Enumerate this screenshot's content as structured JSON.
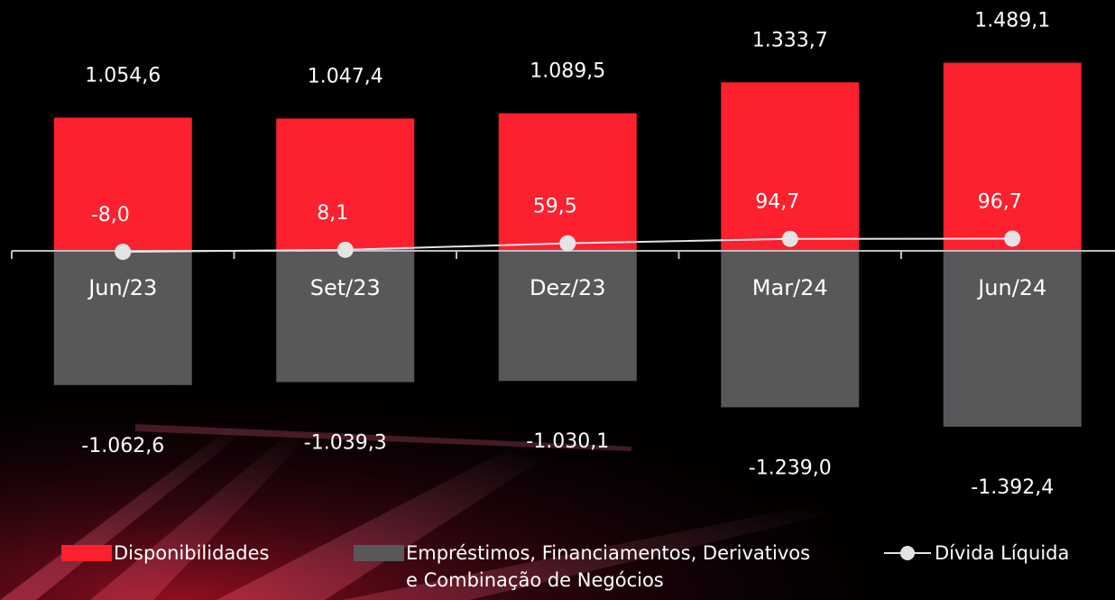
{
  "chart_data": {
    "type": "bar",
    "categories": [
      "Jun/23",
      "Set/23",
      "Dez/23",
      "Mar/24",
      "Jun/24"
    ],
    "series": [
      {
        "name": "Disponibilidades",
        "color": "#fd202e",
        "values": [
          1054.6,
          1047.4,
          1089.5,
          1333.7,
          1489.1
        ],
        "value_labels": [
          "1.054,6",
          "1.047,4",
          "1.089,5",
          "1.333,7",
          "1.489,1"
        ]
      },
      {
        "name": "Empréstimos, Financiamentos, Derivativos e Combinação de Negócios",
        "color": "#58585b",
        "values": [
          -1062.6,
          -1039.3,
          -1030.1,
          -1239.0,
          -1392.4
        ],
        "value_labels": [
          "-1.062,6",
          "-1.039,3",
          "-1.030,1",
          "-1.239,0",
          "-1.392,4"
        ]
      },
      {
        "name": "Dívida Líquida",
        "type": "line",
        "color": "#e4e4e4",
        "values": [
          -8.0,
          8.1,
          59.5,
          94.7,
          96.7
        ],
        "value_labels": [
          "-8,0",
          "8,1",
          "59,5",
          "94,7",
          "96,7"
        ]
      }
    ]
  }
}
